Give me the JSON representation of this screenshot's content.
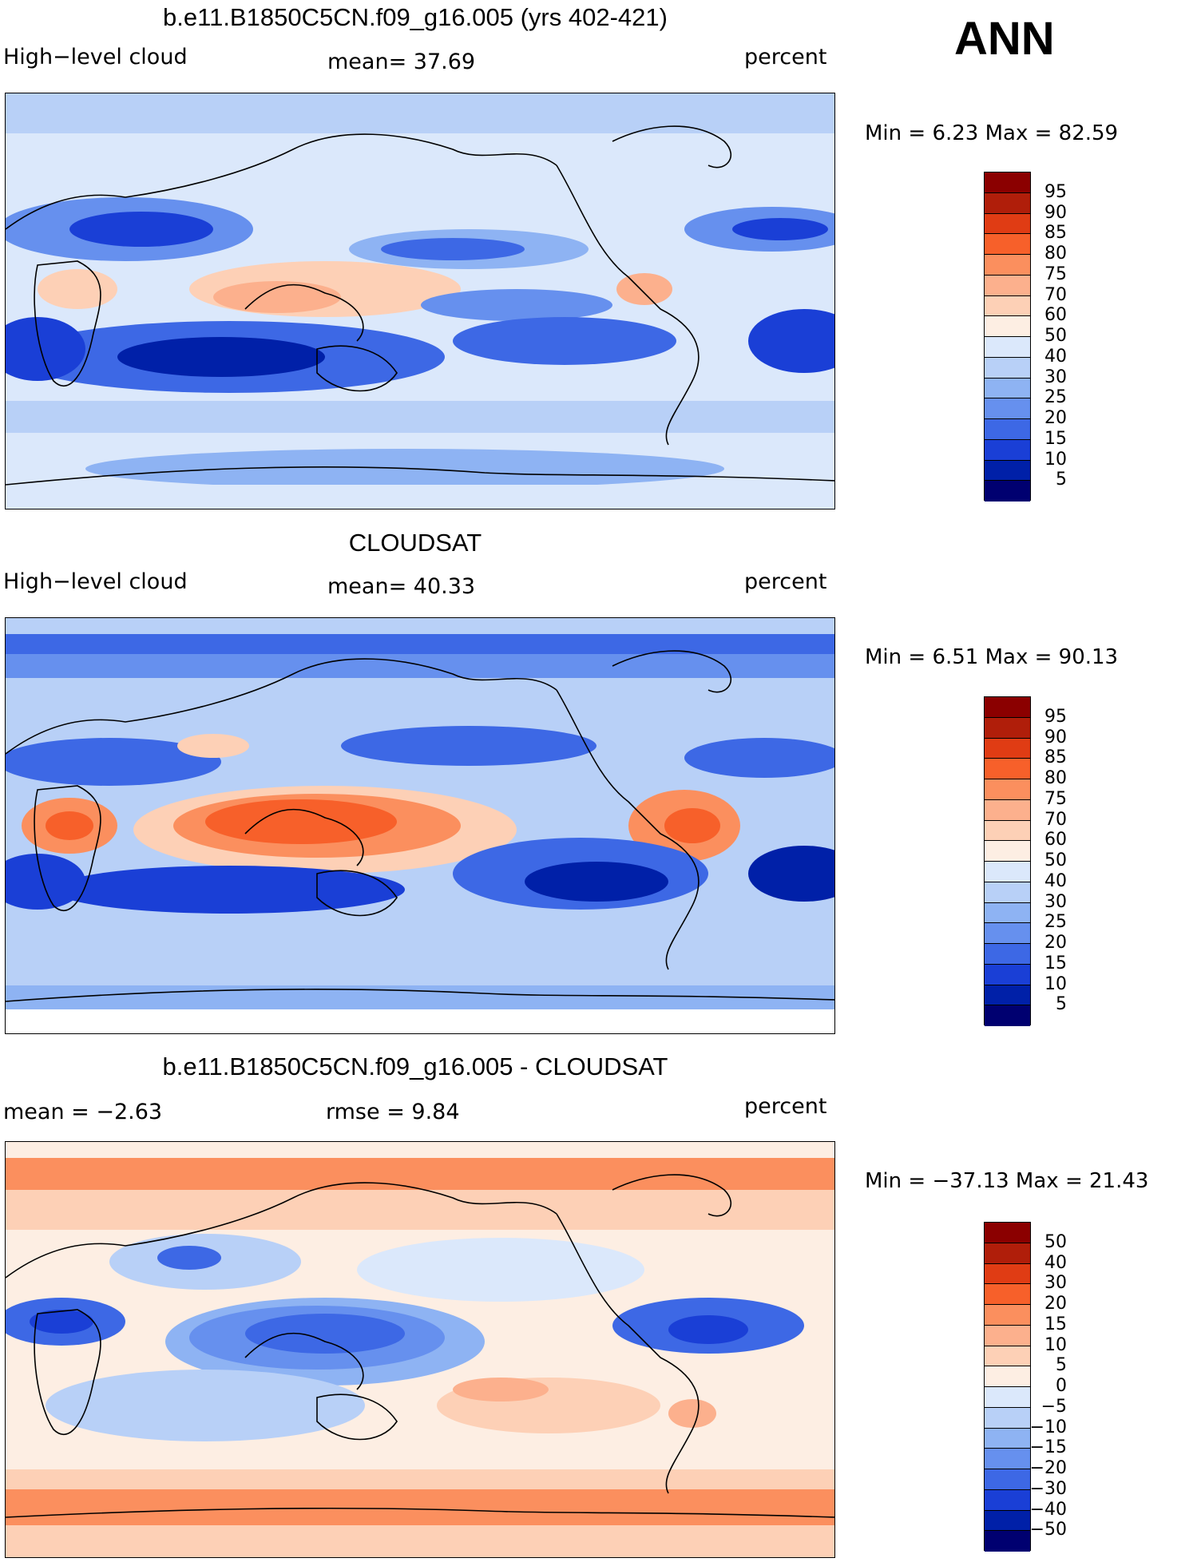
{
  "season": "ANN",
  "panels": [
    {
      "title": "b.e11.B1850C5CN.f09_g16.005 (yrs 402-421)",
      "left_label": "High−level cloud",
      "center_label": "mean=   37.69",
      "right_label": "percent",
      "minmax": "Min =     6.23  Max  =    82.59",
      "colorbar": {
        "labels": [
          "95",
          "90",
          "85",
          "80",
          "75",
          "70",
          "60",
          "50",
          "40",
          "30",
          "25",
          "20",
          "15",
          "10",
          "5"
        ],
        "colors": [
          "#8b0000",
          "#b01e0a",
          "#e03c14",
          "#f7602a",
          "#fb8f5e",
          "#fcb08d",
          "#fdd0b6",
          "#fdeee3",
          "#dbe8fb",
          "#b8d0f7",
          "#8eb3f3",
          "#6690ee",
          "#3d68e5",
          "#1a3fd6",
          "#0020a8",
          "#000070"
        ]
      }
    },
    {
      "title": "CLOUDSAT",
      "left_label": "High−level cloud",
      "center_label": "mean=   40.33",
      "right_label": "percent",
      "minmax": "Min =     6.51  Max  =    90.13",
      "colorbar": {
        "labels": [
          "95",
          "90",
          "85",
          "80",
          "75",
          "70",
          "60",
          "50",
          "40",
          "30",
          "25",
          "20",
          "15",
          "10",
          "5"
        ],
        "colors": [
          "#8b0000",
          "#b01e0a",
          "#e03c14",
          "#f7602a",
          "#fb8f5e",
          "#fcb08d",
          "#fdd0b6",
          "#fdeee3",
          "#dbe8fb",
          "#b8d0f7",
          "#8eb3f3",
          "#6690ee",
          "#3d68e5",
          "#1a3fd6",
          "#0020a8",
          "#000070"
        ]
      }
    },
    {
      "title": "b.e11.B1850C5CN.f09_g16.005 - CLOUDSAT",
      "left_label": "mean  =   −2.63",
      "center_label": "rmse  =     9.84",
      "right_label": "percent",
      "minmax": "Min  =  −37.13  Max  =    21.43",
      "colorbar": {
        "labels": [
          "50",
          "40",
          "30",
          "20",
          "15",
          "10",
          "5",
          "0",
          "−5",
          "−10",
          "−15",
          "−20",
          "−30",
          "−40",
          "−50"
        ],
        "colors": [
          "#8b0000",
          "#b01e0a",
          "#e03c14",
          "#f7602a",
          "#fb8f5e",
          "#fcb08d",
          "#fdd0b6",
          "#fdeee3",
          "#dbe8fb",
          "#b8d0f7",
          "#8eb3f3",
          "#6690ee",
          "#3d68e5",
          "#1a3fd6",
          "#0020a8",
          "#000070"
        ]
      }
    }
  ]
}
